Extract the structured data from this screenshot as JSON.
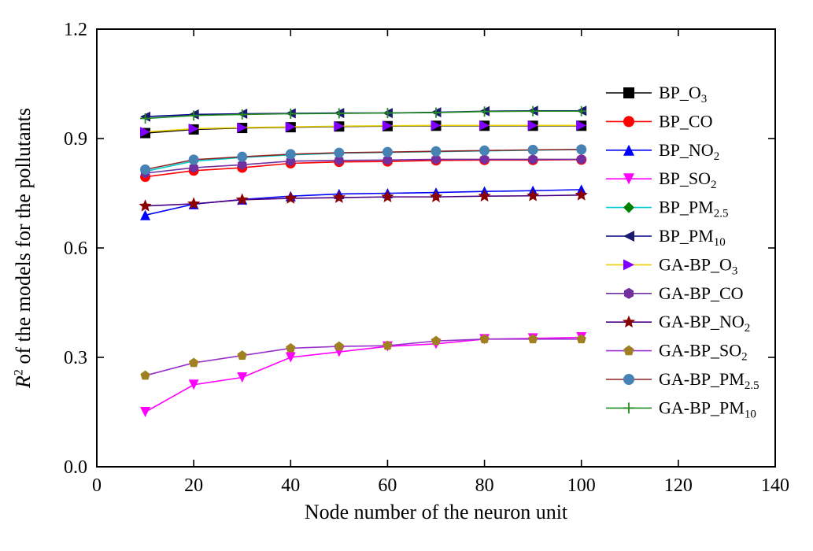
{
  "chart_data": {
    "type": "line",
    "title": "",
    "xlabel": "Node number of the neuron unit",
    "ylabel": "R2 of the models for the pollutants",
    "ylabel_parts": {
      "italic": "R",
      "sup": "2",
      "rest": " of the models for the pollutants"
    },
    "xlim": [
      0,
      140
    ],
    "ylim": [
      0.0,
      1.2
    ],
    "xticks": [
      0,
      20,
      40,
      60,
      80,
      100,
      120,
      140
    ],
    "yticks": [
      0.0,
      0.3,
      0.6,
      0.9,
      1.2
    ],
    "grid": false,
    "legend_position": "inside-right",
    "x": [
      10,
      20,
      30,
      40,
      50,
      60,
      70,
      80,
      90,
      100
    ],
    "series": [
      {
        "name": "BP_O3",
        "label": {
          "main": "BP_O",
          "sub": "3"
        },
        "line_color": "#000000",
        "marker": "square",
        "marker_color": "#000000",
        "values": [
          0.915,
          0.925,
          0.929,
          0.931,
          0.933,
          0.934,
          0.935,
          0.935,
          0.935,
          0.935
        ]
      },
      {
        "name": "BP_CO",
        "label": {
          "main": "BP_CO",
          "sub": ""
        },
        "line_color": "#ff0000",
        "marker": "circle",
        "marker_color": "#ff0000",
        "values": [
          0.795,
          0.812,
          0.82,
          0.832,
          0.836,
          0.837,
          0.84,
          0.841,
          0.841,
          0.842
        ]
      },
      {
        "name": "BP_NO2",
        "label": {
          "main": "BP_NO",
          "sub": "2"
        },
        "line_color": "#0000ff",
        "marker": "triangle-up",
        "marker_color": "#0000ff",
        "values": [
          0.69,
          0.72,
          0.733,
          0.742,
          0.748,
          0.75,
          0.752,
          0.755,
          0.757,
          0.76
        ]
      },
      {
        "name": "BP_SO2",
        "label": {
          "main": "BP_SO",
          "sub": "2"
        },
        "line_color": "#ff00ff",
        "marker": "triangle-down",
        "marker_color": "#ff00ff",
        "values": [
          0.15,
          0.225,
          0.245,
          0.3,
          0.315,
          0.33,
          0.337,
          0.35,
          0.352,
          0.355
        ]
      },
      {
        "name": "BP_PM2.5",
        "label": {
          "main": "BP_PM",
          "sub": "2.5"
        },
        "line_color": "#00ced1",
        "marker": "diamond",
        "marker_color": "#008000",
        "values": [
          0.81,
          0.838,
          0.848,
          0.855,
          0.86,
          0.862,
          0.864,
          0.866,
          0.868,
          0.87
        ]
      },
      {
        "name": "BP_PM10",
        "label": {
          "main": "BP_PM",
          "sub": "10"
        },
        "line_color": "#000080",
        "marker": "triangle-left",
        "marker_color": "#191970",
        "values": [
          0.96,
          0.966,
          0.968,
          0.969,
          0.97,
          0.97,
          0.972,
          0.975,
          0.976,
          0.976
        ]
      },
      {
        "name": "GA-BP_O3",
        "label": {
          "main": "GA-BP_O",
          "sub": "3"
        },
        "line_color": "#e8d000",
        "marker": "triangle-right",
        "marker_color": "#8000ff",
        "values": [
          0.918,
          0.927,
          0.93,
          0.932,
          0.934,
          0.935,
          0.936,
          0.936,
          0.936,
          0.936
        ]
      },
      {
        "name": "GA-BP_CO",
        "label": {
          "main": "GA-BP_CO",
          "sub": ""
        },
        "line_color": "#7030a0",
        "marker": "hexagon",
        "marker_color": "#7030a0",
        "values": [
          0.805,
          0.82,
          0.828,
          0.838,
          0.84,
          0.841,
          0.843,
          0.843,
          0.843,
          0.843
        ]
      },
      {
        "name": "GA-BP_NO2",
        "label": {
          "main": "GA-BP_NO",
          "sub": "2"
        },
        "line_color": "#4b0082",
        "marker": "star",
        "marker_color": "#8b0000",
        "values": [
          0.715,
          0.721,
          0.732,
          0.736,
          0.738,
          0.74,
          0.74,
          0.742,
          0.743,
          0.745
        ]
      },
      {
        "name": "GA-BP_SO2",
        "label": {
          "main": "GA-BP_SO",
          "sub": "2"
        },
        "line_color": "#9932cc",
        "marker": "pentagon",
        "marker_color": "#a08020",
        "values": [
          0.25,
          0.285,
          0.305,
          0.325,
          0.33,
          0.332,
          0.345,
          0.35,
          0.35,
          0.35
        ]
      },
      {
        "name": "GA-BP_PM2.5",
        "label": {
          "main": "GA-BP_PM",
          "sub": "2.5"
        },
        "line_color": "#8b2323",
        "marker": "circle",
        "marker_color": "#4682b4",
        "values": [
          0.815,
          0.842,
          0.85,
          0.857,
          0.861,
          0.863,
          0.865,
          0.867,
          0.869,
          0.87
        ]
      },
      {
        "name": "GA-BP_PM10",
        "label": {
          "main": "GA-BP_PM",
          "sub": "10"
        },
        "line_color": "#228b22",
        "marker": "plus",
        "marker_color": "#228b22",
        "values": [
          0.955,
          0.963,
          0.966,
          0.968,
          0.969,
          0.97,
          0.971,
          0.974,
          0.975,
          0.975
        ]
      }
    ]
  }
}
